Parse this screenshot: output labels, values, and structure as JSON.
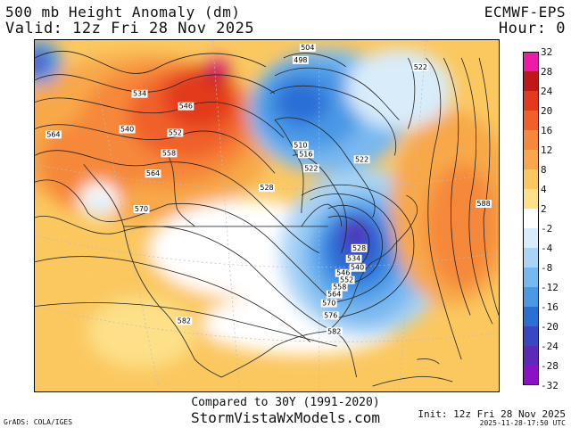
{
  "header": {
    "title": "500 mb Height Anomaly (dm)",
    "valid": "Valid: 12z Fri 28 Nov 2025",
    "model": "ECMWF-EPS",
    "hour": "Hour: 0"
  },
  "footer": {
    "compared": "Compared to 30Y (1991-2020)",
    "site": "StormVistaWxModels.com",
    "grads": "GrADS: COLA/IGES",
    "init": "Init: 12z Fri 28 Nov 2025",
    "stamp": "2025-11-28-17:50 UTC"
  },
  "colorbar": {
    "ticks": [
      "32",
      "28",
      "24",
      "20",
      "16",
      "12",
      "8",
      "4",
      "2",
      "-2",
      "-4",
      "-8",
      "-12",
      "-16",
      "-20",
      "-24",
      "-28",
      "-32"
    ],
    "colors": [
      "#ee1aa8",
      "#c01818",
      "#e23b1c",
      "#f0602a",
      "#f6883a",
      "#f8a84a",
      "#fbc860",
      "#fde088",
      "#ffffff",
      "#d8ecfa",
      "#a8d4f6",
      "#78b8f0",
      "#4a98e6",
      "#2a6ed6",
      "#3848c4",
      "#5a2ab8",
      "#8a12c4"
    ]
  },
  "contour_labels": [
    "504",
    "498",
    "522",
    "534",
    "546",
    "564",
    "540",
    "552",
    "558",
    "564",
    "570",
    "510",
    "516",
    "522",
    "522",
    "528",
    "528",
    "534",
    "540",
    "546",
    "552",
    "558",
    "564",
    "570",
    "576",
    "582",
    "582",
    "588"
  ]
}
